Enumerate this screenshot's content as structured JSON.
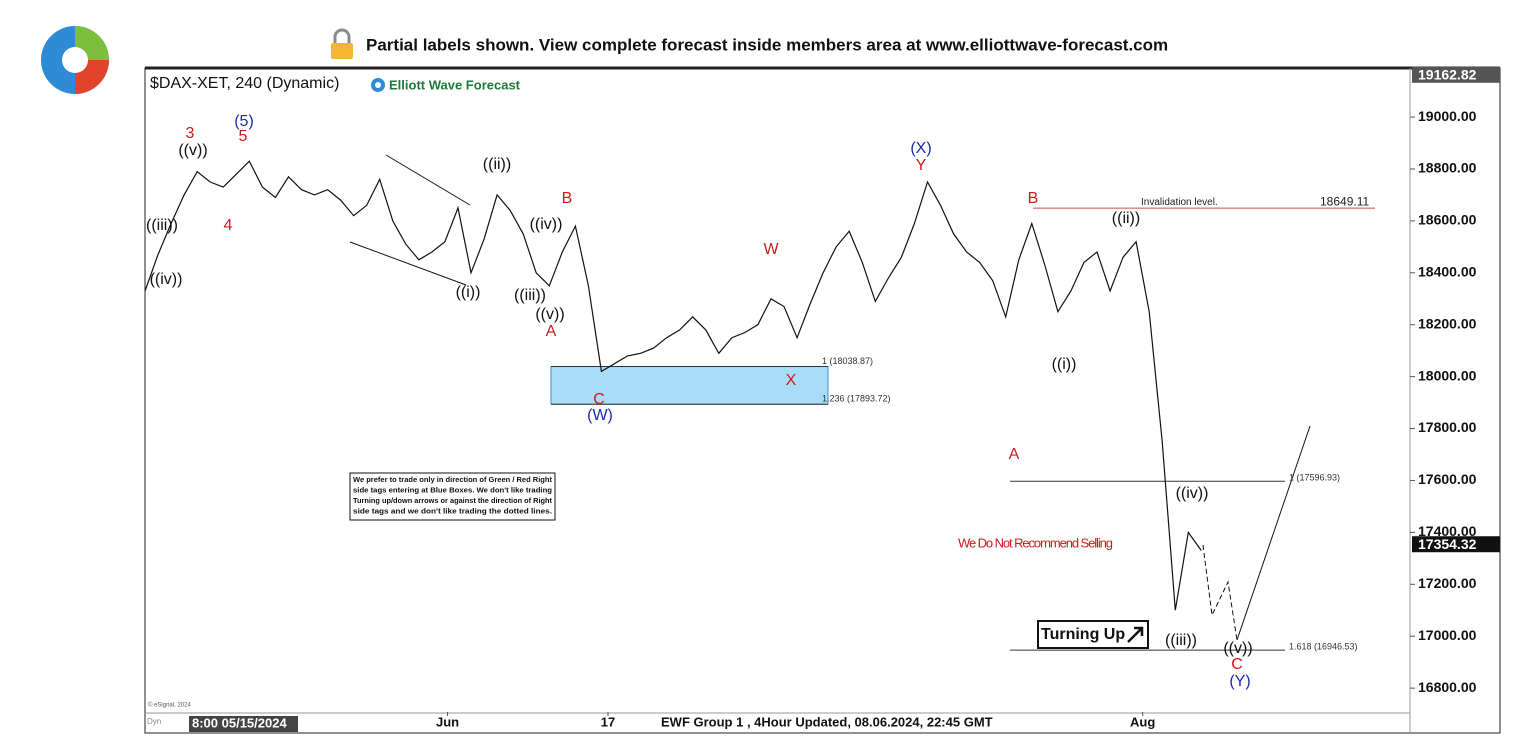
{
  "chart_data": {
    "type": "line",
    "banner": "Partial labels shown. View complete forecast inside members area at www.elliottwave-forecast.com",
    "title": "$DAX-XET, 240 (Dynamic)",
    "brand": "Elliott Wave Forecast",
    "color": "#111111",
    "values": [
      18330,
      18470,
      18590,
      18700,
      18790,
      18750,
      18730,
      18780,
      18830,
      18730,
      18690,
      18770,
      18720,
      18700,
      18720,
      18680,
      18620,
      18660,
      18760,
      18600,
      18510,
      18450,
      18480,
      18520,
      18650,
      18400,
      18530,
      18700,
      18640,
      18550,
      18400,
      18350,
      18480,
      18580,
      18350,
      18020,
      18050,
      18080,
      18090,
      18110,
      18150,
      18180,
      18230,
      18180,
      18090,
      18150,
      18170,
      18200,
      18300,
      18270,
      18150,
      18280,
      18400,
      18500,
      18560,
      18440,
      18290,
      18380,
      18460,
      18590,
      18750,
      18660,
      18550,
      18480,
      18440,
      18370,
      18230,
      18450,
      18590,
      18430,
      18250,
      18330,
      18440,
      18480,
      18330,
      18460,
      18520,
      18250,
      17750,
      17100,
      17400,
      17330
    ],
    "xlim": [
      0,
      97
    ],
    "xticks": [
      {
        "value": 23.2,
        "label": "Jun"
      },
      {
        "value": 35.5,
        "label": "17"
      },
      {
        "value": 76.5,
        "label": "Aug"
      }
    ],
    "ylim": [
      16708,
      19189
    ],
    "yticks": [
      {
        "value": 16800,
        "label": "16800.00"
      },
      {
        "value": 17000,
        "label": "17000.00"
      },
      {
        "value": 17200,
        "label": "17200.00"
      },
      {
        "value": 17400,
        "label": "17400.00"
      },
      {
        "value": 17600,
        "label": "17600.00"
      },
      {
        "value": 17800,
        "label": "17800.00"
      },
      {
        "value": 18000,
        "label": "18000.00"
      },
      {
        "value": 18200,
        "label": "18200.00"
      },
      {
        "value": 18400,
        "label": "18400.00"
      },
      {
        "value": 18600,
        "label": "18600.00"
      },
      {
        "value": 18800,
        "label": "18800.00"
      },
      {
        "value": 19000,
        "label": "19000.00"
      }
    ],
    "price_markers": [
      {
        "value": 19162.82,
        "label": "19162.82"
      },
      {
        "value": 17354.32,
        "label": "17354.32"
      }
    ],
    "fib_levels": [
      {
        "value": 18038.87,
        "label": "1 (18038.87)"
      },
      {
        "value": 17893.72,
        "label": "1.236 (17893.72)"
      },
      {
        "value": 17596.93,
        "label": "1 (17596.93)"
      },
      {
        "value": 16946.53,
        "label": "1.618 (16946.53)"
      }
    ],
    "invalidation": {
      "text": "Invalidation level.",
      "value": 18649.11,
      "label": "18649.11"
    },
    "wave_labels": [
      "3",
      "((v))",
      "(5)",
      "5",
      "4",
      "((iii))",
      "((iv))",
      "((i))",
      "((ii))",
      "((iv))",
      "((iii))",
      "((v))",
      "A",
      "B",
      "C",
      "(W)",
      "W",
      "X",
      "(X)",
      "Y",
      "B",
      "((ii))",
      "((i))",
      "A",
      "((iv))",
      "((iii))",
      "((v))",
      "C",
      "(Y)"
    ],
    "note": "We Do Not Recommend Selling",
    "turning": "Turning Up",
    "disclaimer": [
      "We prefer to trade only in direction of Green / Red Right",
      "side tags entering at Blue Boxes. We don't like trading",
      "Turning up/down arrows or against the direction of Right",
      "side tags and we don't like trading the dotted lines."
    ],
    "cursor_date": "8:00 05/15/2024",
    "footer": "EWF Group 1 , 4Hour Updated, 08.06.2024, 22:45 GMT",
    "copyright": "© eSignal, 2024",
    "dyn": "Dyn"
  }
}
